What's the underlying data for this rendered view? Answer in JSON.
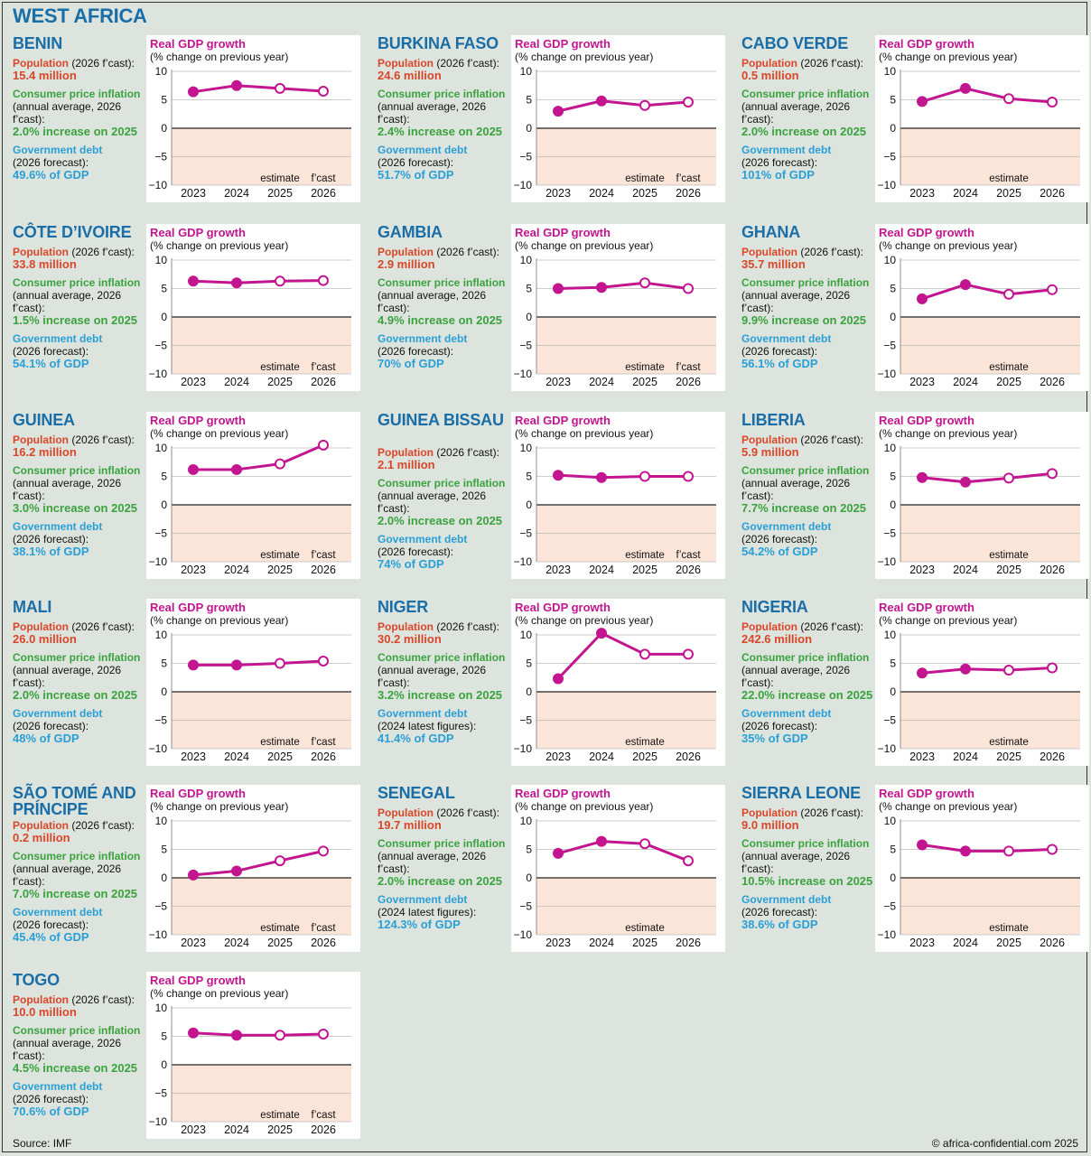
{
  "title": "WEST AFRICA",
  "source": "Source: IMF",
  "copyright": "© africa-confidential.com 2025",
  "labels": {
    "pop_head": "Population",
    "cpi_head": "Consumer price inflation",
    "cpi_note": "(annual average, 2026 f’cast):",
    "debt_head": "Government debt"
  },
  "chart_data": {
    "type": "line",
    "title": "Real GDP growth",
    "subtitle": "(% change on previous year)",
    "categories": [
      "2023",
      "2024",
      "2025",
      "2026"
    ],
    "ylim": [
      -10,
      10
    ],
    "yticks": [
      10,
      5,
      0,
      -5,
      -10
    ],
    "ytick_labels": [
      "10",
      "5",
      "0",
      "−5",
      "−10"
    ],
    "colors": {
      "line": "#c2158f",
      "negative_zone": "#fbe4d8"
    }
  },
  "countries": [
    {
      "name": "BENIN",
      "pop_note": "(2026 f’cast):",
      "pop": "15.4 million",
      "cpi": "2.0% increase on 2025",
      "debt_note": "(2026 forecast):",
      "debt": "49.6% of GDP",
      "gdp": [
        6.4,
        7.5,
        7.0,
        6.5
      ],
      "est_label": "estimate",
      "fc_label": "f’cast",
      "first_open": 2
    },
    {
      "name": "BURKINA FASO",
      "pop_note": "(2026 f’cast):",
      "pop": "24.6 million",
      "cpi": "2.4% increase on 2025",
      "debt_note": "(2026 forecast):",
      "debt": "51.7% of GDP",
      "gdp": [
        3.0,
        4.8,
        4.0,
        4.6
      ],
      "est_label": "estimate",
      "fc_label": "f’cast",
      "first_open": 2
    },
    {
      "name": "CABO VERDE",
      "pop_note": "(2026 f’cast):",
      "pop": "0.5 million",
      "cpi": "2.0% increase on 2025",
      "debt_note": "(2026 forecast):",
      "debt": "101% of GDP",
      "gdp": [
        4.7,
        7.0,
        5.2,
        4.6
      ],
      "est_label": "estimate",
      "fc_label": "",
      "first_open": 2
    },
    {
      "name": "CÔTE D’IVOIRE",
      "pop_note": "(2026 f’cast):",
      "pop": "33.8 million",
      "cpi": "1.5% increase on 2025",
      "debt_note": "(2026 forecast):",
      "debt": "54.1% of GDP",
      "gdp": [
        6.3,
        6.0,
        6.3,
        6.4
      ],
      "est_label": "estimate",
      "fc_label": "f’cast",
      "first_open": 2
    },
    {
      "name": "GAMBIA",
      "pop_note": "(2026 f’cast):",
      "pop": "2.9 million",
      "cpi": "4.9% increase on 2025",
      "debt_note": "(2026 forecast):",
      "debt": "70% of GDP",
      "gdp": [
        5.0,
        5.2,
        6.0,
        5.0
      ],
      "est_label": "estimate",
      "fc_label": "f’cast",
      "first_open": 2
    },
    {
      "name": "GHANA",
      "pop_note": "(2026 f’cast):",
      "pop": "35.7 million",
      "cpi": "9.9% increase on 2025",
      "debt_note": "(2026 forecast):",
      "debt": "56.1% of GDP",
      "gdp": [
        3.2,
        5.7,
        4.0,
        4.8
      ],
      "est_label": "estimate",
      "fc_label": "",
      "first_open": 2
    },
    {
      "name": "GUINEA",
      "pop_note": "(2026 f’cast):",
      "pop": "16.2 million",
      "cpi": "3.0% increase on 2025",
      "debt_note": "(2026 forecast):",
      "debt": "38.1% of GDP",
      "gdp": [
        6.2,
        6.2,
        7.2,
        10.5
      ],
      "est_label": "estimate",
      "fc_label": "f’cast",
      "first_open": 2
    },
    {
      "name": "GUINEA BISSAU",
      "pop_note": "(2026 f’cast):",
      "pop": "2.1 million",
      "cpi": "2.0% increase on 2025",
      "debt_note": "(2026 forecast):",
      "debt": "74% of GDP",
      "gdp": [
        5.2,
        4.8,
        5.0,
        5.0
      ],
      "est_label": "estimate",
      "fc_label": "f’cast",
      "first_open": 2
    },
    {
      "name": "LIBERIA",
      "pop_note": "(2026 f’cast):",
      "pop": "5.9 million",
      "cpi": "7.7% increase on 2025",
      "debt_note": "(2026 forecast):",
      "debt": "54.2% of GDP",
      "gdp": [
        4.8,
        4.0,
        4.7,
        5.5
      ],
      "est_label": "estimate",
      "fc_label": "",
      "first_open": 2
    },
    {
      "name": "MALI",
      "pop_note": "(2026 f’cast):",
      "pop": "26.0 million",
      "cpi": "2.0% increase on 2025",
      "debt_note": "(2026 forecast):",
      "debt": "48% of GDP",
      "gdp": [
        4.7,
        4.7,
        5.0,
        5.4
      ],
      "est_label": "estimate",
      "fc_label": "f’cast",
      "first_open": 2
    },
    {
      "name": "NIGER",
      "pop_note": "(2026 f’cast):",
      "pop": "30.2 million",
      "cpi": "3.2% increase on 2025",
      "debt_note": "(2024 latest figures):",
      "debt": "41.4% of GDP",
      "gdp": [
        2.3,
        10.3,
        6.6,
        6.6
      ],
      "est_label": "estimate",
      "fc_label": "",
      "first_open": 2
    },
    {
      "name": "NIGERIA",
      "pop_note": "(2026 f’cast):",
      "pop": "242.6 million",
      "cpi": "22.0% increase on 2025",
      "debt_note": "(2026 forecast):",
      "debt": "35% of GDP",
      "gdp": [
        3.3,
        4.0,
        3.8,
        4.2
      ],
      "est_label": "estimate",
      "fc_label": "",
      "first_open": 2
    },
    {
      "name": "SÃO TOMÉ AND PRÍNCIPE",
      "pop_note": "(2026 f’cast):",
      "pop": "0.2 million",
      "cpi": "7.0% increase on 2025",
      "debt_note": "(2026 forecast):",
      "debt": "45.4% of GDP",
      "gdp": [
        0.5,
        1.2,
        3.0,
        4.7
      ],
      "est_label": "estimate",
      "fc_label": "f’cast",
      "first_open": 2
    },
    {
      "name": "SENEGAL",
      "pop_note": "(2026 f’cast):",
      "pop": "19.7 million",
      "cpi": "2.0% increase on 2025",
      "debt_note": "(2024 latest figures):",
      "debt": "124.3% of GDP",
      "gdp": [
        4.3,
        6.4,
        6.0,
        3.0
      ],
      "est_label": "estimate",
      "fc_label": "",
      "first_open": 2
    },
    {
      "name": "SIERRA LEONE",
      "pop_note": "(2026 f’cast):",
      "pop": "9.0 million",
      "cpi": "10.5% increase on 2025",
      "debt_note": "(2026 forecast):",
      "debt": "38.6% of GDP",
      "gdp": [
        5.8,
        4.7,
        4.7,
        5.0
      ],
      "est_label": "estimate",
      "fc_label": "",
      "first_open": 2
    },
    {
      "name": "TOGO",
      "pop_note": "(2026 f’cast):",
      "pop": "10.0 million",
      "cpi": "4.5% increase on 2025",
      "debt_note": "(2026 forecast):",
      "debt": "70.6% of GDP",
      "gdp": [
        5.6,
        5.2,
        5.2,
        5.4
      ],
      "est_label": "estimate",
      "fc_label": "f’cast",
      "first_open": 2
    }
  ]
}
